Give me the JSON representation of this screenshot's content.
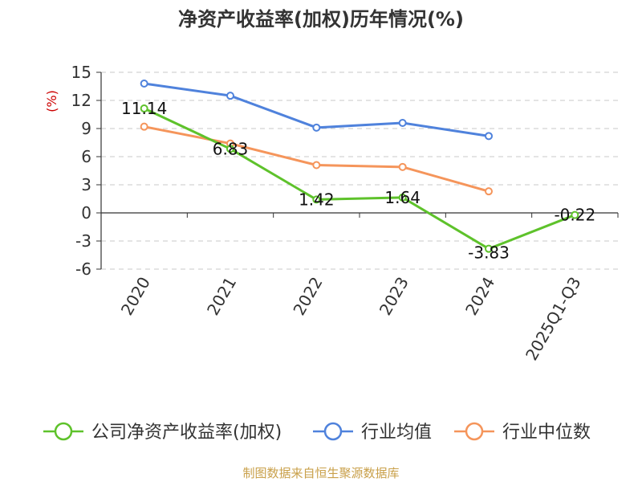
{
  "chart_data": {
    "type": "line",
    "title": "净资产收益率(加权)历年情况(%)",
    "ylabel": "(%)",
    "xlabel": "",
    "categories": [
      "2020",
      "2021",
      "2022",
      "2023",
      "2024",
      "2025Q1-Q3"
    ],
    "ylim": [
      -6,
      15
    ],
    "yticks": [
      15,
      12,
      9,
      6,
      3,
      0,
      -3,
      -6
    ],
    "grid": true,
    "legend_position": "bottom",
    "series": [
      {
        "name": "公司净资产收益率(加权)",
        "color": "#5ec22b",
        "values": [
          11.14,
          6.83,
          1.42,
          1.64,
          -3.83,
          -0.22
        ],
        "labels": [
          "11.14",
          "6.83",
          "1.42",
          "1.64",
          "-3.83",
          "-0.22"
        ]
      },
      {
        "name": "行业均值",
        "color": "#4f82dc",
        "values": [
          13.8,
          12.5,
          9.1,
          9.6,
          8.2,
          null
        ]
      },
      {
        "name": "行业中位数",
        "color": "#f5955b",
        "values": [
          9.2,
          7.4,
          5.1,
          4.9,
          2.3,
          null
        ]
      }
    ]
  },
  "footer": {
    "source": "制图数据来自恒生聚源数据库"
  }
}
